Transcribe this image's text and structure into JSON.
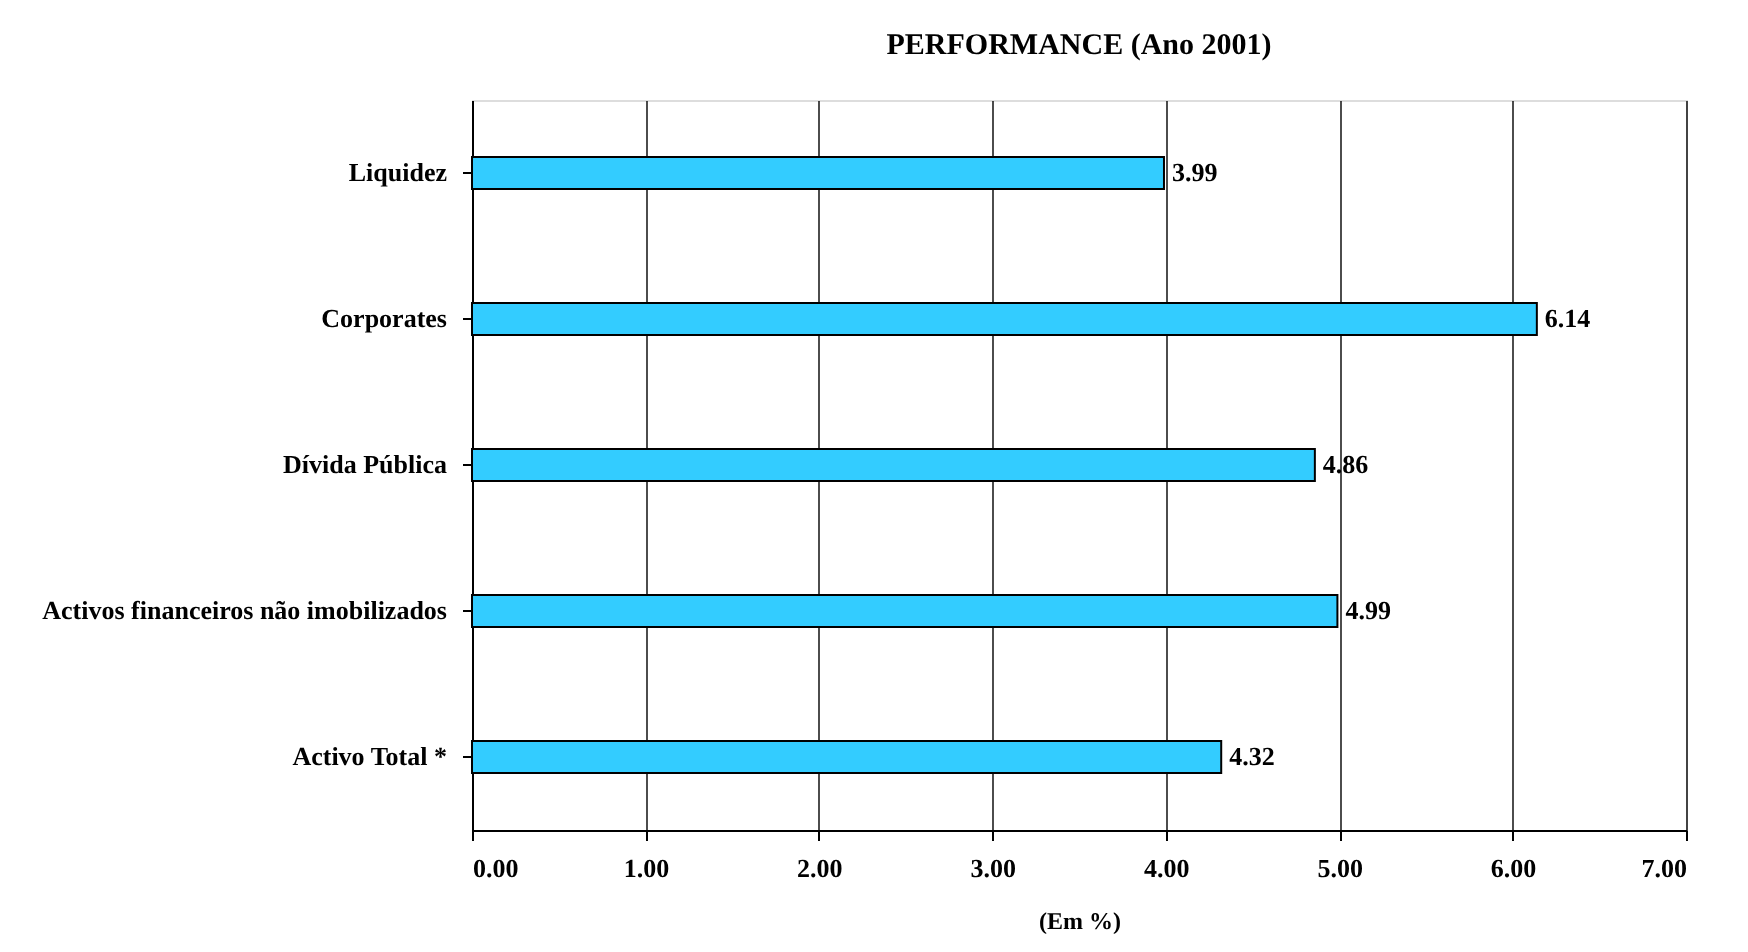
{
  "chart_data": {
    "type": "bar",
    "orientation": "horizontal",
    "title": "PERFORMANCE (Ano 2001)",
    "xlabel": "(Em %)",
    "categories": [
      "Liquidez",
      "Corporates",
      "Dívida Pública",
      "Activos financeiros não imobilizados",
      "Activo Total  *"
    ],
    "values": [
      3.99,
      6.14,
      4.86,
      4.99,
      4.32
    ],
    "color": "#33ccff",
    "data_labels": true,
    "xlim": [
      0,
      7
    ],
    "xticks": [
      {
        "value": 0,
        "label": "0.00"
      },
      {
        "value": 1,
        "label": "1.00"
      },
      {
        "value": 2,
        "label": "2.00"
      },
      {
        "value": 3,
        "label": "3.00"
      },
      {
        "value": 4,
        "label": "4.00"
      },
      {
        "value": 5,
        "label": "5.00"
      },
      {
        "value": 6,
        "label": "6.00"
      },
      {
        "value": 7,
        "label": "7.00"
      }
    ],
    "grid": "x"
  }
}
